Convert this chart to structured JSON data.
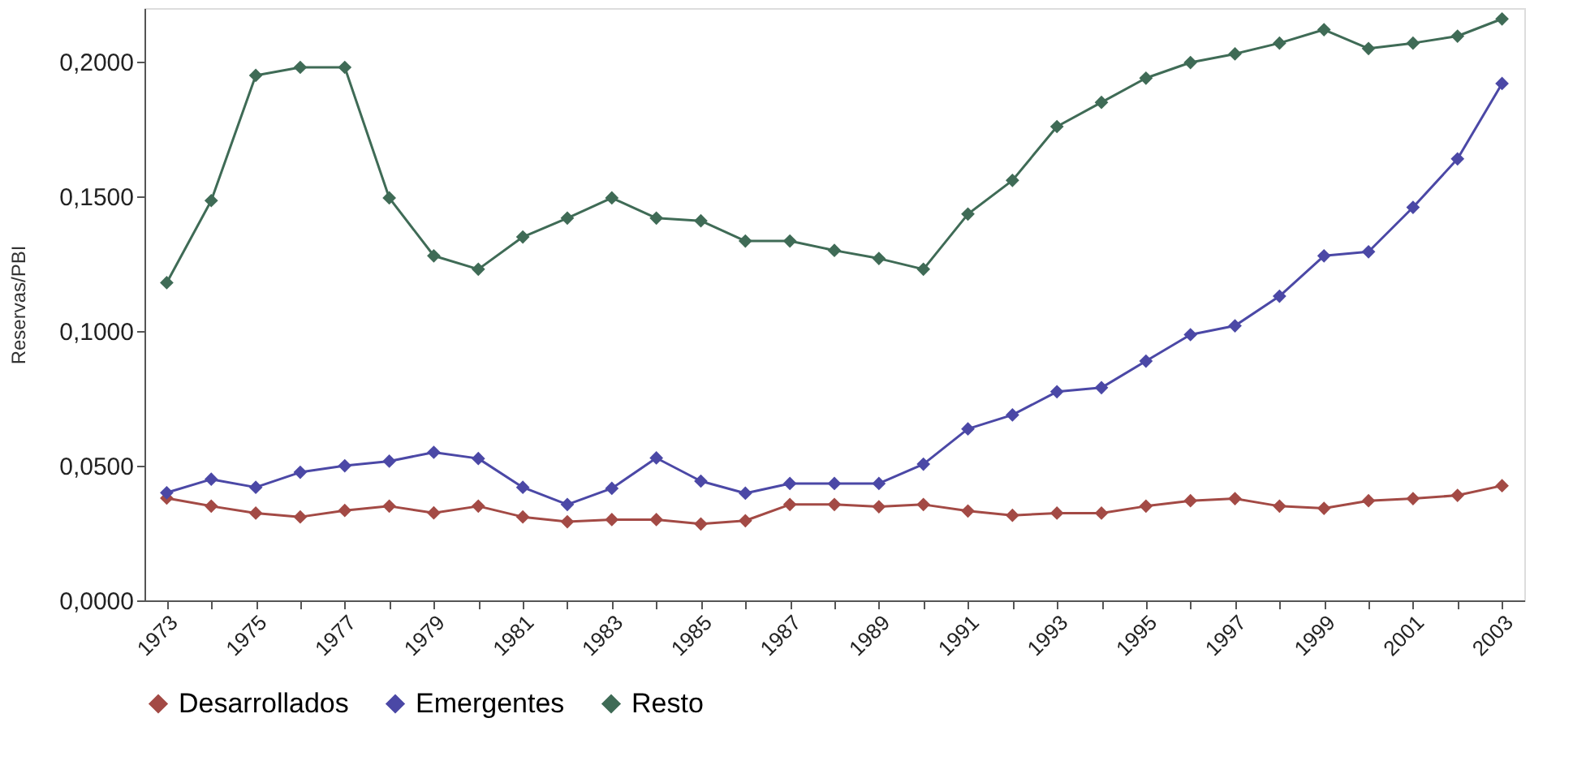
{
  "chart_data": {
    "type": "line",
    "ylabel": "Reservas/PBI",
    "categories": [
      "1973",
      null,
      "1975",
      null,
      "1977",
      null,
      "1979",
      null,
      "1981",
      null,
      "1983",
      null,
      "1985",
      null,
      "1987",
      null,
      "1989",
      null,
      "1991",
      null,
      "1993",
      null,
      "1995",
      null,
      "1997",
      null,
      "1999",
      null,
      "2001",
      null,
      "2003"
    ],
    "series": [
      {
        "name": "Desarrollados",
        "color": "#a34a45",
        "values": [
          0.038,
          0.035,
          0.0324,
          0.031,
          0.0334,
          0.035,
          0.0325,
          0.035,
          0.031,
          0.0292,
          0.03,
          0.03,
          0.0284,
          0.0296,
          0.0356,
          0.0356,
          0.0348,
          0.0356,
          0.0332,
          0.0316,
          0.0324,
          0.0324,
          0.035,
          0.037,
          0.0378,
          0.035,
          0.0342,
          0.037,
          0.0378,
          0.039,
          0.0426
        ]
      },
      {
        "name": "Emergentes",
        "color": "#4b48a6",
        "values": [
          0.04,
          0.045,
          0.042,
          0.0476,
          0.05,
          0.0517,
          0.055,
          0.0527,
          0.042,
          0.0356,
          0.0416,
          0.0529,
          0.0443,
          0.0398,
          0.0434,
          0.0434,
          0.0434,
          0.0506,
          0.0637,
          0.0689,
          0.0775,
          0.079,
          0.0889,
          0.0987,
          0.102,
          0.113,
          0.128,
          0.1295,
          0.146,
          0.164,
          0.192
        ]
      },
      {
        "name": "Resto",
        "color": "#3f6b56",
        "values": [
          0.118,
          0.1485,
          0.195,
          0.198,
          0.198,
          0.1495,
          0.128,
          0.123,
          0.135,
          0.142,
          0.1495,
          0.142,
          0.141,
          0.1335,
          0.1335,
          0.13,
          0.127,
          0.123,
          0.1435,
          0.156,
          0.176,
          0.185,
          0.194,
          0.1998,
          0.203,
          0.207,
          0.212,
          0.205,
          0.207,
          0.2096,
          0.216
        ]
      }
    ],
    "ylim": [
      0,
      0.22
    ],
    "yticks": [
      {
        "value": 0,
        "label": "0,0000"
      },
      {
        "value": 0.05,
        "label": "0,0500"
      },
      {
        "value": 0.1,
        "label": "0,1000"
      },
      {
        "value": 0.15,
        "label": "0,1500"
      },
      {
        "value": 0.2,
        "label": "0,2000"
      }
    ],
    "grid": false,
    "legend": "bottom",
    "marker": "diamond",
    "line_style": "solid"
  }
}
